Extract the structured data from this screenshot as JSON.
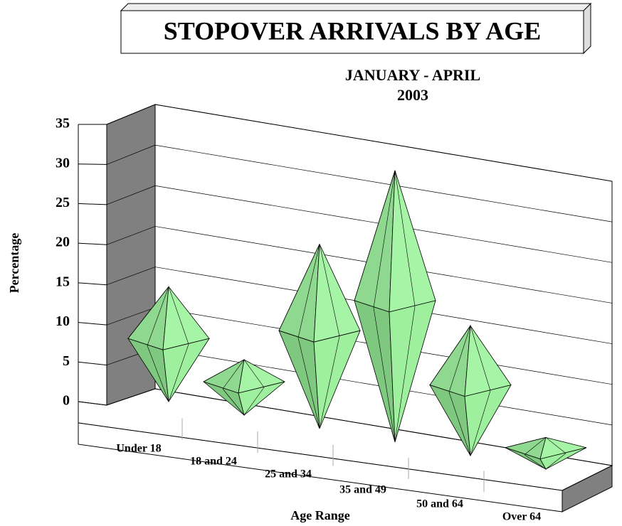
{
  "chart_data": {
    "type": "diamond3d",
    "title": "STOPOVER ARRIVALS BY AGE",
    "subtitle": [
      "JANUARY - APRIL",
      "2003"
    ],
    "x_label": "Age Range",
    "y_label": "Percentage",
    "categories": [
      "Under 18",
      "18 and 24",
      "25 and 34",
      "35 and 49",
      "50 and 64",
      "Over 64"
    ],
    "values": [
      14.5,
      7.0,
      23.3,
      34.3,
      16.4,
      4.0
    ],
    "color": "#9ef09e",
    "ylim": [
      0,
      35
    ],
    "yticks": [
      0,
      5,
      10,
      15,
      20,
      25,
      30,
      35
    ],
    "grid": true
  }
}
